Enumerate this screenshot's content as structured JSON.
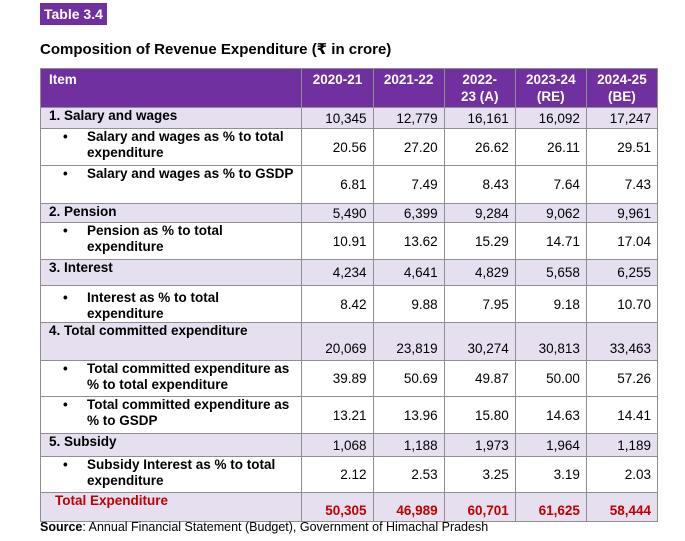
{
  "tag": "Table 3.4",
  "title": "Composition of Revenue Expenditure (₹ in crore)",
  "headers": {
    "item": "Item",
    "years": [
      "2020-21",
      "2021-22",
      "2022-\n23 (A)",
      "2023-24\n(RE)",
      "2024-25\n(BE)"
    ]
  },
  "rows": [
    {
      "label": "1. Salary and wages",
      "values": [
        "10,345",
        "12,779",
        "16,161",
        "16,092",
        "17,247"
      ]
    },
    {
      "label": "Salary and wages as % to total expenditure",
      "values": [
        "20.56",
        "27.20",
        "26.62",
        "26.11",
        "29.51"
      ]
    },
    {
      "label": "Salary and wages as % to GSDP",
      "values": [
        "6.81",
        "7.49",
        "8.43",
        "7.64",
        "7.43"
      ]
    },
    {
      "label": "2. Pension",
      "values": [
        "5,490",
        "6,399",
        "9,284",
        "9,062",
        "9,961"
      ]
    },
    {
      "label": "Pension as % to total expenditure",
      "values": [
        "10.91",
        "13.62",
        "15.29",
        "14.71",
        "17.04"
      ]
    },
    {
      "label": "3. Interest",
      "values": [
        "4,234",
        "4,641",
        "4,829",
        "5,658",
        "6,255"
      ]
    },
    {
      "label": "Interest as % to total expenditure",
      "values": [
        "8.42",
        "9.88",
        "7.95",
        "9.18",
        "10.70"
      ]
    },
    {
      "label": "4. Total committed expenditure",
      "values": [
        "20,069",
        "23,819",
        "30,274",
        "30,813",
        "33,463"
      ]
    },
    {
      "label": "Total committed expenditure as % to total expenditure",
      "values": [
        "39.89",
        "50.69",
        "49.87",
        "50.00",
        "57.26"
      ]
    },
    {
      "label": "Total committed expenditure as % to GSDP",
      "values": [
        "13.21",
        "13.96",
        "15.80",
        "14.63",
        "14.41"
      ]
    },
    {
      "label": "5.  Subsidy",
      "values": [
        "1,068",
        "1,188",
        "1,973",
        "1,964",
        "1,189"
      ]
    },
    {
      "label": "Subsidy Interest as % to total expenditure",
      "values": [
        "2.12",
        "2.53",
        "3.25",
        "3.19",
        "2.03"
      ]
    },
    {
      "label": "Total Expenditure",
      "values": [
        "50,305",
        "46,989",
        "60,701",
        "61,625",
        "58,444"
      ]
    }
  ],
  "bullet": "•",
  "source": {
    "label": "Source",
    "text": ": Annual Financial Statement (Budget), Government of Himachal Pradesh"
  }
}
